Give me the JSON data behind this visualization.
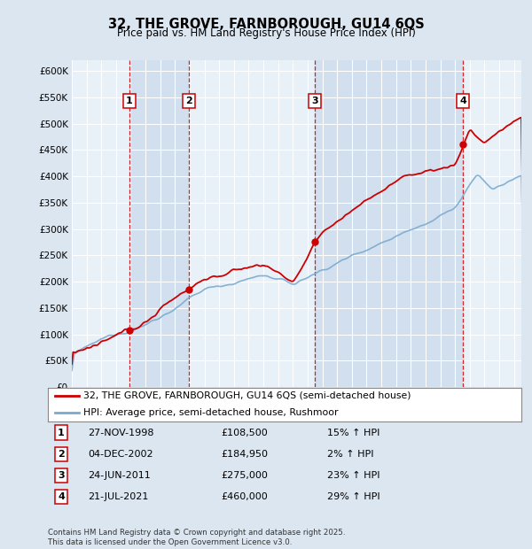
{
  "title": "32, THE GROVE, FARNBOROUGH, GU14 6QS",
  "subtitle": "Price paid vs. HM Land Registry's House Price Index (HPI)",
  "background_color": "#dce6f1",
  "plot_bg_color": "#dce6f1",
  "plot_inner_color": "#e8f0f8",
  "ylim": [
    0,
    620000
  ],
  "yticks": [
    0,
    50000,
    100000,
    150000,
    200000,
    250000,
    300000,
    350000,
    400000,
    450000,
    500000,
    550000,
    600000
  ],
  "xlim_start": 1995.0,
  "xlim_end": 2025.5,
  "sale_dates": [
    1998.91,
    2002.92,
    2011.48,
    2021.55
  ],
  "sale_prices": [
    108500,
    184950,
    275000,
    460000
  ],
  "sale_labels": [
    "1",
    "2",
    "3",
    "4"
  ],
  "legend_entries": [
    "32, THE GROVE, FARNBOROUGH, GU14 6QS (semi-detached house)",
    "HPI: Average price, semi-detached house, Rushmoor"
  ],
  "table_rows": [
    [
      "1",
      "27-NOV-1998",
      "£108,500",
      "15% ↑ HPI"
    ],
    [
      "2",
      "04-DEC-2002",
      "£184,950",
      "2% ↑ HPI"
    ],
    [
      "3",
      "24-JUN-2011",
      "£275,000",
      "23% ↑ HPI"
    ],
    [
      "4",
      "21-JUL-2021",
      "£460,000",
      "29% ↑ HPI"
    ]
  ],
  "footnote": "Contains HM Land Registry data © Crown copyright and database right 2025.\nThis data is licensed under the Open Government Licence v3.0.",
  "red_color": "#cc0000",
  "blue_color": "#7aabcf",
  "dashed_color": "#cc0000",
  "shade_color": "#c5d8ec"
}
